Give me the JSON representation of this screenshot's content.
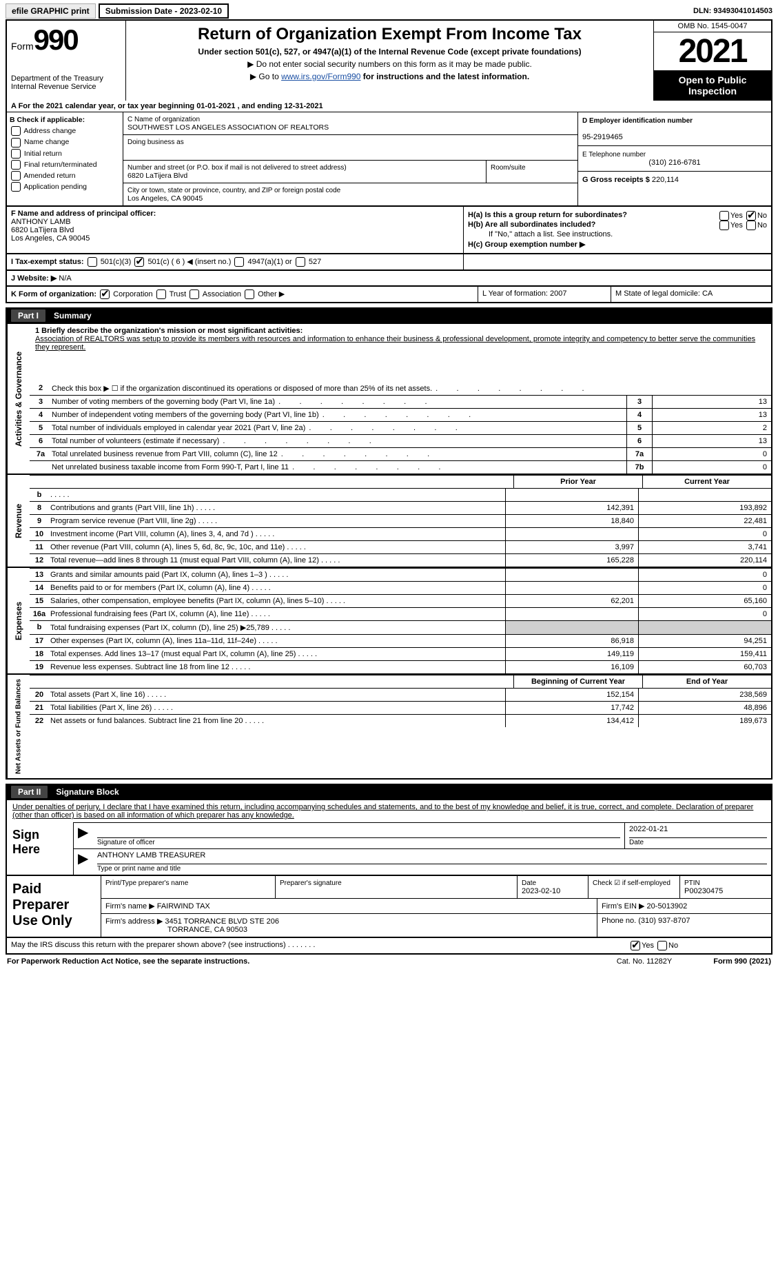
{
  "topbar": {
    "efile": "efile GRAPHIC print",
    "submission": "Submission Date - 2023-02-10",
    "dln": "DLN: 93493041014503"
  },
  "header": {
    "form_label": "Form",
    "form_num": "990",
    "dept": "Department of the Treasury",
    "irs": "Internal Revenue Service",
    "title": "Return of Organization Exempt From Income Tax",
    "sub1": "Under section 501(c), 527, or 4947(a)(1) of the Internal Revenue Code (except private foundations)",
    "sub2": "Do not enter social security numbers on this form as it may be made public.",
    "sub3_pre": "Go to ",
    "sub3_link": "www.irs.gov/Form990",
    "sub3_post": " for instructions and the latest information.",
    "omb": "OMB No. 1545-0047",
    "year": "2021",
    "inspect": "Open to Public Inspection"
  },
  "period": {
    "text": "A For the 2021 calendar year, or tax year beginning 01-01-2021    , and ending 12-31-2021"
  },
  "entity": {
    "b_label": "B Check if applicable:",
    "b_items": [
      "Address change",
      "Name change",
      "Initial return",
      "Final return/terminated",
      "Amended return",
      "Application pending"
    ],
    "c_label": "C Name of organization",
    "c_name": "SOUTHWEST LOS ANGELES ASSOCIATION OF REALTORS",
    "dba_label": "Doing business as",
    "addr_label": "Number and street (or P.O. box if mail is not delivered to street address)",
    "room_label": "Room/suite",
    "addr": "6820 LaTijera Blvd",
    "city_label": "City or town, state or province, country, and ZIP or foreign postal code",
    "city": "Los Angeles, CA  90045",
    "d_label": "D Employer identification number",
    "d_val": "95-2919465",
    "e_label": "E Telephone number",
    "e_val": "(310) 216-6781",
    "g_label": "G Gross receipts $",
    "g_val": "220,114"
  },
  "officer": {
    "f_label": "F  Name and address of principal officer:",
    "name": "ANTHONY LAMB",
    "addr1": "6820 LaTijera Blvd",
    "addr2": "Los Angeles, CA  90045",
    "ha": "H(a)  Is this a group return for subordinates?",
    "hb": "H(b)  Are all subordinates included?",
    "hb_note": "If \"No,\" attach a list. See instructions.",
    "hc": "H(c)  Group exemption number ▶",
    "yes": "Yes",
    "no": "No"
  },
  "tax": {
    "i_label": "I   Tax-exempt status:",
    "opt1": "501(c)(3)",
    "opt2": "501(c) ( 6 ) ◀ (insert no.)",
    "opt3": "4947(a)(1) or",
    "opt4": "527"
  },
  "website": {
    "j_label": "J   Website: ▶",
    "j_val": "N/A"
  },
  "kl": {
    "k": "K Form of organization:",
    "k_opts": [
      "Corporation",
      "Trust",
      "Association",
      "Other ▶"
    ],
    "l": "L Year of formation: 2007",
    "m": "M State of legal domicile: CA"
  },
  "part1": {
    "label": "Part I",
    "title": "Summary"
  },
  "mission": {
    "line1_label": "1  Briefly describe the organization's mission or most significant activities:",
    "text": "Association of REALTORS was setup to provide its members with resources and information to enhance their business & professional development, promote integrity and competency to better serve the communities they represent."
  },
  "gov_side": "Activities & Governance",
  "gov": [
    {
      "n": "2",
      "t": "Check this box ▶ ☐ if the organization discontinued its operations or disposed of more than 25% of its net assets."
    },
    {
      "n": "3",
      "t": "Number of voting members of the governing body (Part VI, line 1a)",
      "cn": "3",
      "v": "13"
    },
    {
      "n": "4",
      "t": "Number of independent voting members of the governing body (Part VI, line 1b)",
      "cn": "4",
      "v": "13"
    },
    {
      "n": "5",
      "t": "Total number of individuals employed in calendar year 2021 (Part V, line 2a)",
      "cn": "5",
      "v": "2"
    },
    {
      "n": "6",
      "t": "Total number of volunteers (estimate if necessary)",
      "cn": "6",
      "v": "13"
    },
    {
      "n": "7a",
      "t": "Total unrelated business revenue from Part VIII, column (C), line 12",
      "cn": "7a",
      "v": "0"
    },
    {
      "n": "",
      "t": "Net unrelated business taxable income from Form 990-T, Part I, line 11",
      "cn": "7b",
      "v": "0"
    }
  ],
  "rev_side": "Revenue",
  "rev_hdr": {
    "py": "Prior Year",
    "cy": "Current Year"
  },
  "rev": [
    {
      "n": "b",
      "t": "",
      "c1": "",
      "c2": ""
    },
    {
      "n": "8",
      "t": "Contributions and grants (Part VIII, line 1h)",
      "c1": "142,391",
      "c2": "193,892"
    },
    {
      "n": "9",
      "t": "Program service revenue (Part VIII, line 2g)",
      "c1": "18,840",
      "c2": "22,481"
    },
    {
      "n": "10",
      "t": "Investment income (Part VIII, column (A), lines 3, 4, and 7d )",
      "c1": "",
      "c2": "0"
    },
    {
      "n": "11",
      "t": "Other revenue (Part VIII, column (A), lines 5, 6d, 8c, 9c, 10c, and 11e)",
      "c1": "3,997",
      "c2": "3,741"
    },
    {
      "n": "12",
      "t": "Total revenue—add lines 8 through 11 (must equal Part VIII, column (A), line 12)",
      "c1": "165,228",
      "c2": "220,114"
    }
  ],
  "exp_side": "Expenses",
  "exp": [
    {
      "n": "13",
      "t": "Grants and similar amounts paid (Part IX, column (A), lines 1–3 )",
      "c1": "",
      "c2": "0"
    },
    {
      "n": "14",
      "t": "Benefits paid to or for members (Part IX, column (A), line 4)",
      "c1": "",
      "c2": "0"
    },
    {
      "n": "15",
      "t": "Salaries, other compensation, employee benefits (Part IX, column (A), lines 5–10)",
      "c1": "62,201",
      "c2": "65,160"
    },
    {
      "n": "16a",
      "t": "Professional fundraising fees (Part IX, column (A), line 11e)",
      "c1": "",
      "c2": "0"
    },
    {
      "n": "b",
      "t": "Total fundraising expenses (Part IX, column (D), line 25) ▶25,789",
      "c1": "",
      "c2": "",
      "shade": true
    },
    {
      "n": "17",
      "t": "Other expenses (Part IX, column (A), lines 11a–11d, 11f–24e)",
      "c1": "86,918",
      "c2": "94,251"
    },
    {
      "n": "18",
      "t": "Total expenses. Add lines 13–17 (must equal Part IX, column (A), line 25)",
      "c1": "149,119",
      "c2": "159,411"
    },
    {
      "n": "19",
      "t": "Revenue less expenses. Subtract line 18 from line 12",
      "c1": "16,109",
      "c2": "60,703"
    }
  ],
  "net_side": "Net Assets or Fund Balances",
  "net_hdr": {
    "py": "Beginning of Current Year",
    "cy": "End of Year"
  },
  "net": [
    {
      "n": "20",
      "t": "Total assets (Part X, line 16)",
      "c1": "152,154",
      "c2": "238,569"
    },
    {
      "n": "21",
      "t": "Total liabilities (Part X, line 26)",
      "c1": "17,742",
      "c2": "48,896"
    },
    {
      "n": "22",
      "t": "Net assets or fund balances. Subtract line 21 from line 20",
      "c1": "134,412",
      "c2": "189,673"
    }
  ],
  "part2": {
    "label": "Part II",
    "title": "Signature Block"
  },
  "sig": {
    "decl": "Under penalties of perjury, I declare that I have examined this return, including accompanying schedules and statements, and to the best of my knowledge and belief, it is true, correct, and complete. Declaration of preparer (other than officer) is based on all information of which preparer has any knowledge.",
    "sign_here": "Sign Here",
    "sig_label": "Signature of officer",
    "date": "2022-01-21",
    "date_label": "Date",
    "name": "ANTHONY LAMB  TREASURER",
    "name_label": "Type or print name and title"
  },
  "prep": {
    "title": "Paid Preparer Use Only",
    "r1": {
      "a": "Print/Type preparer's name",
      "b": "Preparer's signature",
      "c": "Date",
      "c_v": "2023-02-10",
      "d": "Check ☑ if self-employed",
      "e": "PTIN",
      "e_v": "P00230475"
    },
    "r2": {
      "a": "Firm's name    ▶ FAIRWIND TAX",
      "b": "Firm's EIN ▶ 20-5013902"
    },
    "r3": {
      "a": "Firm's address ▶ 3451 TORRANCE BLVD STE 206",
      "b": "Phone no. (310) 937-8707"
    },
    "r3b": "TORRANCE, CA  90503"
  },
  "discuss": {
    "q": "May the IRS discuss this return with the preparer shown above? (see instructions)",
    "yes": "Yes",
    "no": "No"
  },
  "footer": {
    "left": "For Paperwork Reduction Act Notice, see the separate instructions.",
    "mid": "Cat. No. 11282Y",
    "right": "Form 990 (2021)"
  }
}
